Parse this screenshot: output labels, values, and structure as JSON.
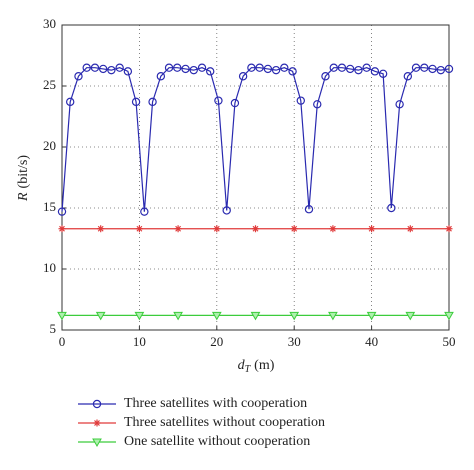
{
  "chart_data": {
    "type": "line",
    "xlabel": {
      "symbol": "d",
      "subscript": "T",
      "unit": "(m)"
    },
    "ylabel": {
      "symbol": "R",
      "unit": "(bit/s)"
    },
    "xlim": [
      0,
      50
    ],
    "xticks": [
      0,
      10,
      20,
      30,
      40,
      50
    ],
    "ylim": [
      5,
      30
    ],
    "yticks": [
      5,
      10,
      15,
      20,
      25,
      30
    ],
    "grid": true,
    "legend": "bottom",
    "series": [
      {
        "name": "Three satellites with cooperation",
        "color": "#2a2ab0",
        "marker": "circle",
        "x": [
          0,
          1.06,
          2.13,
          3.19,
          4.26,
          5.32,
          6.38,
          7.45,
          8.51,
          9.57,
          10.64,
          11.7,
          12.77,
          13.83,
          14.89,
          15.96,
          17.02,
          18.09,
          19.15,
          20.21,
          21.28,
          22.34,
          23.4,
          24.47,
          25.53,
          26.6,
          27.66,
          28.72,
          29.79,
          30.85,
          31.91,
          32.98,
          34.04,
          35.11,
          36.17,
          37.23,
          38.3,
          39.36,
          40.43,
          41.49,
          42.55,
          43.62,
          44.68,
          45.74,
          46.81,
          47.87,
          48.94,
          50
        ],
        "values": [
          14.7,
          23.7,
          25.8,
          26.5,
          26.5,
          26.4,
          26.3,
          26.5,
          26.2,
          23.7,
          14.7,
          23.7,
          25.8,
          26.5,
          26.5,
          26.4,
          26.3,
          26.5,
          26.2,
          23.8,
          14.8,
          23.6,
          25.8,
          26.5,
          26.5,
          26.4,
          26.3,
          26.5,
          26.2,
          23.8,
          14.9,
          23.5,
          25.8,
          26.5,
          26.5,
          26.4,
          26.3,
          26.5,
          26.2,
          26.0,
          15.0,
          23.5,
          25.8,
          26.5,
          26.5,
          26.4,
          26.3,
          26.4
        ]
      },
      {
        "name": "Three satellites without cooperation",
        "color": "#e03a3a",
        "marker": "asterisk",
        "x": [
          0,
          5,
          10,
          15,
          20,
          25,
          30,
          35,
          40,
          45,
          50
        ],
        "values": [
          13.3,
          13.3,
          13.3,
          13.3,
          13.3,
          13.3,
          13.3,
          13.3,
          13.3,
          13.3,
          13.3
        ]
      },
      {
        "name": "One satellite without cooperation",
        "color": "#3ccc3c",
        "marker": "triangle-down",
        "x": [
          0,
          5,
          10,
          15,
          20,
          25,
          30,
          35,
          40,
          45,
          50
        ],
        "values": [
          6.2,
          6.2,
          6.2,
          6.2,
          6.2,
          6.2,
          6.2,
          6.2,
          6.2,
          6.2,
          6.2
        ]
      }
    ]
  }
}
